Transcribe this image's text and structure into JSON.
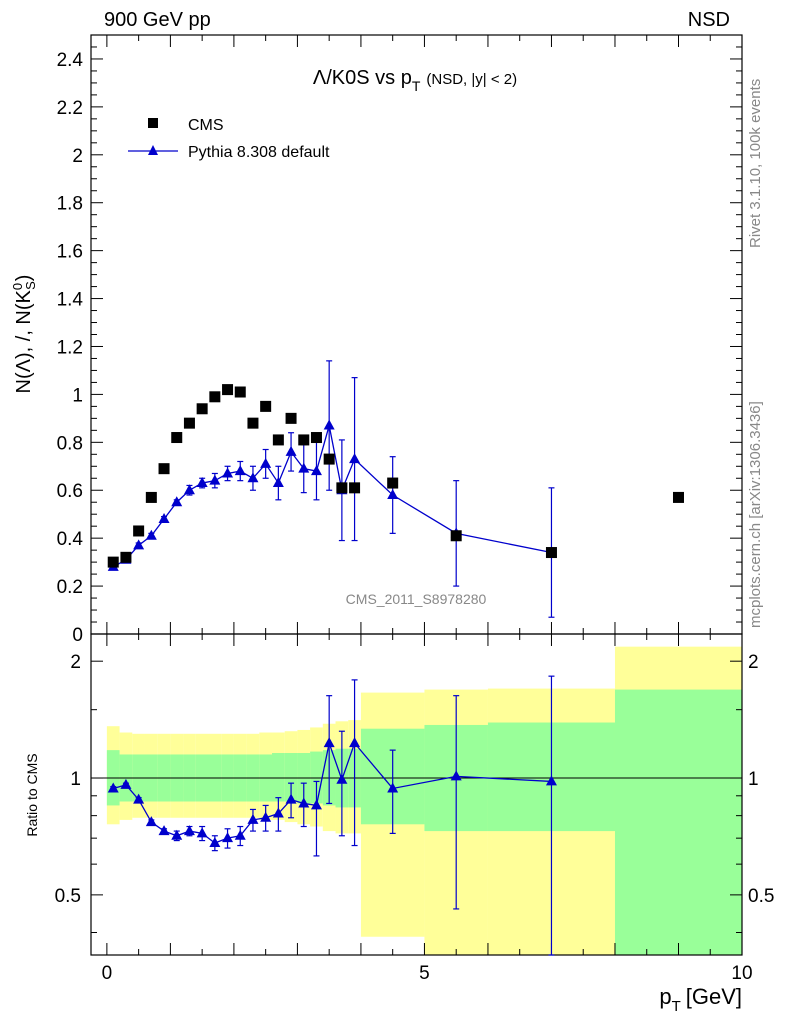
{
  "header": {
    "left": "900 GeV pp",
    "right": "NSD"
  },
  "side_labels": {
    "rivet": "Rivet 3.1.10,  100k events",
    "mcplots": "mcplots.cern.ch [arXiv:1306.3436]"
  },
  "watermark": "CMS_2011_S8978280",
  "chart_data": [
    {
      "type": "scatter",
      "title": "Λ/K0S vs p_T (NSD, |y| < 2)",
      "title_main": "Λ/K0S vs p",
      "title_sub": "T",
      "title_extra": "(NSD, |y| < 2)",
      "ylabel": "N(Λ), /, N(K⁰_S)",
      "xlabel": "",
      "xlim": [
        -0.25,
        10
      ],
      "ylim": [
        0,
        2.5
      ],
      "yticks": [
        "0",
        "0.2",
        "0.4",
        "0.6",
        "0.8",
        "1",
        "1.2",
        "1.4",
        "1.6",
        "1.8",
        "2",
        "2.2",
        "2.4"
      ],
      "ytick_values": [
        0,
        0.2,
        0.4,
        0.6,
        0.8,
        1.0,
        1.2,
        1.4,
        1.6,
        1.8,
        2.0,
        2.2,
        2.4
      ],
      "legend_position": "top-left",
      "series": [
        {
          "name": "CMS",
          "marker": "square",
          "color": "#000000",
          "x": [
            0.1,
            0.3,
            0.5,
            0.7,
            0.9,
            1.1,
            1.3,
            1.5,
            1.7,
            1.9,
            2.1,
            2.3,
            2.5,
            2.7,
            2.9,
            3.1,
            3.3,
            3.5,
            3.7,
            3.9,
            4.5,
            5.5,
            7.0,
            9.0
          ],
          "y": [
            0.3,
            0.32,
            0.43,
            0.57,
            0.69,
            0.82,
            0.88,
            0.94,
            0.99,
            1.02,
            1.01,
            0.88,
            0.95,
            0.81,
            0.9,
            0.81,
            0.82,
            0.73,
            0.61,
            0.61,
            0.63,
            0.41,
            0.34,
            0.57
          ]
        },
        {
          "name": "Pythia 8.308 default",
          "marker": "triangle",
          "color": "#0000cc",
          "x": [
            0.1,
            0.3,
            0.5,
            0.7,
            0.9,
            1.1,
            1.3,
            1.5,
            1.7,
            1.9,
            2.1,
            2.3,
            2.5,
            2.7,
            2.9,
            3.1,
            3.3,
            3.5,
            3.7,
            3.9,
            4.5,
            5.5,
            7.0
          ],
          "y": [
            0.28,
            0.31,
            0.37,
            0.41,
            0.48,
            0.55,
            0.6,
            0.63,
            0.64,
            0.67,
            0.68,
            0.65,
            0.71,
            0.63,
            0.76,
            0.69,
            0.68,
            0.87,
            0.6,
            0.73,
            0.58,
            0.42,
            0.34
          ],
          "err": [
            0.01,
            0.01,
            0.01,
            0.01,
            0.01,
            0.01,
            0.02,
            0.02,
            0.03,
            0.03,
            0.04,
            0.05,
            0.06,
            0.07,
            0.08,
            0.1,
            0.12,
            0.27,
            0.21,
            0.34,
            0.16,
            0.22,
            0.27
          ]
        }
      ]
    },
    {
      "type": "scatter",
      "title": "",
      "ylabel": "Ratio to CMS",
      "xlabel": "p_T [GeV]",
      "xlabel_main": "p",
      "xlabel_sub": "T",
      "xlabel_unit": "[GeV]",
      "xlim": [
        -0.25,
        10
      ],
      "ylim": [
        0.35,
        2.35
      ],
      "log_y": true,
      "xticks": [
        "0",
        "5",
        "10"
      ],
      "xtick_values": [
        0,
        5,
        10
      ],
      "yticks": [
        "0.5",
        "1",
        "2"
      ],
      "ytick_values": [
        0.5,
        1,
        2
      ],
      "reference_line": 1,
      "bands": {
        "x_edges": [
          0,
          0.2,
          0.4,
          0.6,
          0.8,
          1.0,
          1.2,
          1.4,
          1.6,
          1.8,
          2.0,
          2.2,
          2.4,
          2.6,
          2.8,
          3.0,
          3.2,
          3.4,
          3.6,
          3.8,
          4.0,
          5.0,
          6.0,
          8.0,
          10.0
        ],
        "green_lo": [
          0.85,
          0.87,
          0.87,
          0.87,
          0.87,
          0.87,
          0.87,
          0.87,
          0.87,
          0.87,
          0.87,
          0.87,
          0.87,
          0.87,
          0.87,
          0.86,
          0.86,
          0.85,
          0.84,
          0.84,
          0.76,
          0.73,
          0.73,
          0.35
        ],
        "green_hi": [
          1.18,
          1.15,
          1.15,
          1.15,
          1.15,
          1.15,
          1.15,
          1.15,
          1.15,
          1.15,
          1.15,
          1.15,
          1.15,
          1.16,
          1.16,
          1.16,
          1.17,
          1.18,
          1.19,
          1.19,
          1.34,
          1.37,
          1.39,
          1.69
        ],
        "yellow_lo": [
          0.76,
          0.78,
          0.79,
          0.79,
          0.79,
          0.79,
          0.79,
          0.79,
          0.79,
          0.79,
          0.79,
          0.79,
          0.78,
          0.78,
          0.77,
          0.76,
          0.75,
          0.73,
          0.72,
          0.72,
          0.39,
          0.35,
          0.35,
          0.35
        ],
        "yellow_hi": [
          1.36,
          1.31,
          1.3,
          1.3,
          1.3,
          1.3,
          1.3,
          1.3,
          1.3,
          1.3,
          1.3,
          1.3,
          1.31,
          1.31,
          1.32,
          1.33,
          1.35,
          1.38,
          1.4,
          1.41,
          1.66,
          1.69,
          1.7,
          2.18
        ]
      },
      "series": [
        {
          "name": "Pythia 8.308 default",
          "marker": "triangle",
          "color": "#0000cc",
          "x": [
            0.1,
            0.3,
            0.5,
            0.7,
            0.9,
            1.1,
            1.3,
            1.5,
            1.7,
            1.9,
            2.1,
            2.3,
            2.5,
            2.7,
            2.9,
            3.1,
            3.3,
            3.5,
            3.7,
            3.9,
            4.5,
            5.5,
            7.0
          ],
          "y": [
            0.94,
            0.96,
            0.88,
            0.77,
            0.73,
            0.71,
            0.73,
            0.72,
            0.68,
            0.7,
            0.71,
            0.78,
            0.79,
            0.81,
            0.88,
            0.86,
            0.85,
            1.23,
            0.99,
            1.23,
            0.94,
            1.01,
            0.98
          ],
          "err_lo": [
            0.01,
            0.01,
            0.01,
            0.01,
            0.01,
            0.02,
            0.02,
            0.03,
            0.03,
            0.04,
            0.04,
            0.05,
            0.06,
            0.08,
            0.09,
            0.11,
            0.22,
            0.37,
            0.28,
            0.56,
            0.22,
            0.55,
            0.63
          ],
          "err_hi": [
            0.01,
            0.01,
            0.01,
            0.01,
            0.01,
            0.02,
            0.02,
            0.03,
            0.03,
            0.04,
            0.04,
            0.05,
            0.06,
            0.08,
            0.09,
            0.11,
            0.13,
            0.4,
            0.33,
            0.56,
            0.24,
            0.62,
            0.85
          ]
        }
      ]
    }
  ]
}
